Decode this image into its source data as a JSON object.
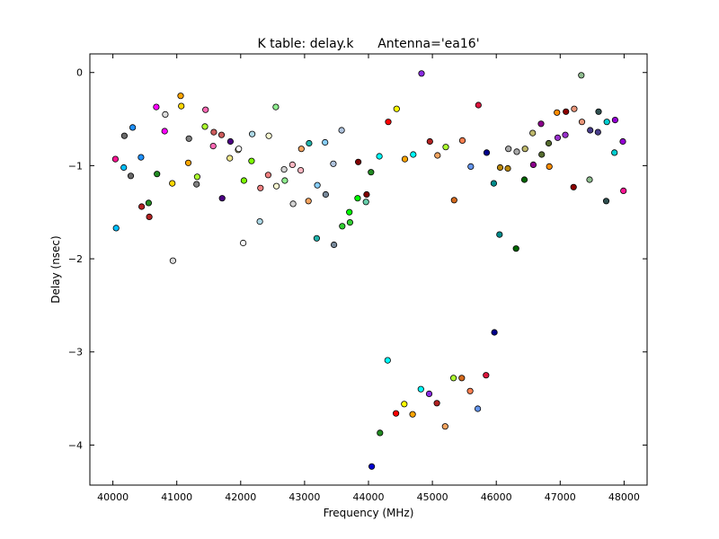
{
  "chart_data": {
    "type": "scatter",
    "title": "K table: delay.k      Antenna='ea16'",
    "xlabel": "Frequency (MHz)",
    "ylabel": "Delay (nsec)",
    "xlim": [
      39640,
      48360
    ],
    "ylim": [
      -4.43,
      0.2
    ],
    "xticks": [
      40000,
      41000,
      42000,
      43000,
      44000,
      45000,
      46000,
      47000,
      48000
    ],
    "yticks": [
      0,
      -1,
      -2,
      -3,
      -4
    ],
    "ytick_labels": [
      "0",
      "−1",
      "−2",
      "−3",
      "−4"
    ],
    "grid": false,
    "points": [
      {
        "x": 40040,
        "y": -0.93,
        "color": "#ff1493"
      },
      {
        "x": 40050,
        "y": -1.67,
        "color": "#00bfff"
      },
      {
        "x": 40170,
        "y": -1.02,
        "color": "#00bfff"
      },
      {
        "x": 40180,
        "y": -0.68,
        "color": "#696969"
      },
      {
        "x": 40280,
        "y": -1.11,
        "color": "#696969"
      },
      {
        "x": 40310,
        "y": -0.59,
        "color": "#1e90ff"
      },
      {
        "x": 40440,
        "y": -0.91,
        "color": "#1e90ff"
      },
      {
        "x": 40450,
        "y": -1.44,
        "color": "#b22222"
      },
      {
        "x": 40560,
        "y": -1.4,
        "color": "#228b22"
      },
      {
        "x": 40570,
        "y": -1.55,
        "color": "#b22222"
      },
      {
        "x": 40680,
        "y": -0.37,
        "color": "#ff00ff"
      },
      {
        "x": 40690,
        "y": -1.09,
        "color": "#228b22"
      },
      {
        "x": 40810,
        "y": -0.63,
        "color": "#ff00ff"
      },
      {
        "x": 40820,
        "y": -0.45,
        "color": "#dcdcdc"
      },
      {
        "x": 40930,
        "y": -1.19,
        "color": "#ffd700"
      },
      {
        "x": 40940,
        "y": -2.02,
        "color": "#dcdcdc"
      },
      {
        "x": 41060,
        "y": -0.25,
        "color": "#ffa500"
      },
      {
        "x": 41070,
        "y": -0.36,
        "color": "#ffd700"
      },
      {
        "x": 41180,
        "y": -0.97,
        "color": "#ffa500"
      },
      {
        "x": 41190,
        "y": -0.71,
        "color": "#808080"
      },
      {
        "x": 41310,
        "y": -1.2,
        "color": "#808080"
      },
      {
        "x": 41320,
        "y": -1.12,
        "color": "#adff2f"
      },
      {
        "x": 41440,
        "y": -0.58,
        "color": "#adff2f"
      },
      {
        "x": 41450,
        "y": -0.4,
        "color": "#ff69b4"
      },
      {
        "x": 41570,
        "y": -0.79,
        "color": "#ff69b4"
      },
      {
        "x": 41580,
        "y": -0.64,
        "color": "#cd5c5c"
      },
      {
        "x": 41700,
        "y": -0.67,
        "color": "#cd5c5c"
      },
      {
        "x": 41710,
        "y": -1.35,
        "color": "#4b0082"
      },
      {
        "x": 41830,
        "y": -0.92,
        "color": "#f0e68c"
      },
      {
        "x": 41840,
        "y": -0.74,
        "color": "#4b0082"
      },
      {
        "x": 41960,
        "y": -0.83,
        "color": "#f0e68c"
      },
      {
        "x": 41970,
        "y": -0.82,
        "color": "#ffffff"
      },
      {
        "x": 42040,
        "y": -1.83,
        "color": "#ffffff"
      },
      {
        "x": 42050,
        "y": -1.16,
        "color": "#7cfc00"
      },
      {
        "x": 42170,
        "y": -0.95,
        "color": "#7cfc00"
      },
      {
        "x": 42180,
        "y": -0.66,
        "color": "#add8e6"
      },
      {
        "x": 42300,
        "y": -1.6,
        "color": "#add8e6"
      },
      {
        "x": 42310,
        "y": -1.24,
        "color": "#f08080"
      },
      {
        "x": 42430,
        "y": -1.1,
        "color": "#f08080"
      },
      {
        "x": 42440,
        "y": -0.68,
        "color": "#fafad2"
      },
      {
        "x": 42550,
        "y": -0.37,
        "color": "#90ee90"
      },
      {
        "x": 42560,
        "y": -1.22,
        "color": "#fafad2"
      },
      {
        "x": 42680,
        "y": -1.04,
        "color": "#d3d3d3"
      },
      {
        "x": 42690,
        "y": -1.16,
        "color": "#90ee90"
      },
      {
        "x": 42810,
        "y": -0.99,
        "color": "#ffb6c1"
      },
      {
        "x": 42820,
        "y": -1.41,
        "color": "#d3d3d3"
      },
      {
        "x": 42940,
        "y": -1.05,
        "color": "#ffb6c1"
      },
      {
        "x": 42950,
        "y": -0.82,
        "color": "#f4a460"
      },
      {
        "x": 43060,
        "y": -1.38,
        "color": "#f4a460"
      },
      {
        "x": 43070,
        "y": -0.76,
        "color": "#20b2aa"
      },
      {
        "x": 43190,
        "y": -1.78,
        "color": "#20b2aa"
      },
      {
        "x": 43200,
        "y": -1.21,
        "color": "#87cefa"
      },
      {
        "x": 43320,
        "y": -0.75,
        "color": "#87cefa"
      },
      {
        "x": 43330,
        "y": -1.31,
        "color": "#778899"
      },
      {
        "x": 43450,
        "y": -0.98,
        "color": "#b0c4de"
      },
      {
        "x": 43460,
        "y": -1.85,
        "color": "#778899"
      },
      {
        "x": 43580,
        "y": -0.62,
        "color": "#b0c4de"
      },
      {
        "x": 43590,
        "y": -1.65,
        "color": "#32cd32"
      },
      {
        "x": 43700,
        "y": -1.5,
        "color": "#00ff00"
      },
      {
        "x": 43710,
        "y": -1.61,
        "color": "#32cd32"
      },
      {
        "x": 43830,
        "y": -1.35,
        "color": "#00ff00"
      },
      {
        "x": 43840,
        "y": -0.96,
        "color": "#800000"
      },
      {
        "x": 43960,
        "y": -1.39,
        "color": "#66cdaa"
      },
      {
        "x": 43970,
        "y": -1.31,
        "color": "#800000"
      },
      {
        "x": 44040,
        "y": -1.07,
        "color": "#228b22"
      },
      {
        "x": 44050,
        "y": -4.23,
        "color": "#0000cd"
      },
      {
        "x": 44170,
        "y": -0.9,
        "color": "#00ffff"
      },
      {
        "x": 44180,
        "y": -3.87,
        "color": "#228b22"
      },
      {
        "x": 44300,
        "y": -3.09,
        "color": "#00ffff"
      },
      {
        "x": 44310,
        "y": -0.53,
        "color": "#ff0000"
      },
      {
        "x": 44430,
        "y": -3.66,
        "color": "#ff0000"
      },
      {
        "x": 44440,
        "y": -0.39,
        "color": "#ffff00"
      },
      {
        "x": 44560,
        "y": -3.56,
        "color": "#ffff00"
      },
      {
        "x": 44570,
        "y": -0.93,
        "color": "#ffa500"
      },
      {
        "x": 44690,
        "y": -3.67,
        "color": "#ffa500"
      },
      {
        "x": 44700,
        "y": -0.88,
        "color": "#00ffff"
      },
      {
        "x": 44820,
        "y": -3.4,
        "color": "#00ffff"
      },
      {
        "x": 44830,
        "y": -0.01,
        "color": "#8a2be2"
      },
      {
        "x": 44950,
        "y": -3.45,
        "color": "#8a2be2"
      },
      {
        "x": 44960,
        "y": -0.74,
        "color": "#b22222"
      },
      {
        "x": 45070,
        "y": -3.55,
        "color": "#b22222"
      },
      {
        "x": 45080,
        "y": -0.89,
        "color": "#f4a460"
      },
      {
        "x": 45200,
        "y": -3.8,
        "color": "#f4a460"
      },
      {
        "x": 45210,
        "y": -0.8,
        "color": "#adff2f"
      },
      {
        "x": 45330,
        "y": -3.28,
        "color": "#adff2f"
      },
      {
        "x": 45340,
        "y": -1.37,
        "color": "#d2691e"
      },
      {
        "x": 45460,
        "y": -3.28,
        "color": "#d2691e"
      },
      {
        "x": 45470,
        "y": -0.73,
        "color": "#ff7f50"
      },
      {
        "x": 45590,
        "y": -3.42,
        "color": "#ff7f50"
      },
      {
        "x": 45600,
        "y": -1.01,
        "color": "#6495ed"
      },
      {
        "x": 45710,
        "y": -3.61,
        "color": "#6495ed"
      },
      {
        "x": 45720,
        "y": -0.35,
        "color": "#dc143c"
      },
      {
        "x": 45840,
        "y": -3.25,
        "color": "#dc143c"
      },
      {
        "x": 45850,
        "y": -0.86,
        "color": "#00008b"
      },
      {
        "x": 45970,
        "y": -2.79,
        "color": "#00008b"
      },
      {
        "x": 45960,
        "y": -1.19,
        "color": "#008b8b"
      },
      {
        "x": 46050,
        "y": -1.74,
        "color": "#008b8b"
      },
      {
        "x": 46060,
        "y": -1.02,
        "color": "#b8860b"
      },
      {
        "x": 46180,
        "y": -1.03,
        "color": "#b8860b"
      },
      {
        "x": 46190,
        "y": -0.82,
        "color": "#a9a9a9"
      },
      {
        "x": 46310,
        "y": -1.89,
        "color": "#006400"
      },
      {
        "x": 46320,
        "y": -0.85,
        "color": "#a9a9a9"
      },
      {
        "x": 46440,
        "y": -1.15,
        "color": "#006400"
      },
      {
        "x": 46450,
        "y": -0.82,
        "color": "#bdb76b"
      },
      {
        "x": 46570,
        "y": -0.65,
        "color": "#bdb76b"
      },
      {
        "x": 46580,
        "y": -0.99,
        "color": "#8b008b"
      },
      {
        "x": 46700,
        "y": -0.55,
        "color": "#8b008b"
      },
      {
        "x": 46710,
        "y": -0.88,
        "color": "#556b2f"
      },
      {
        "x": 46820,
        "y": -0.76,
        "color": "#556b2f"
      },
      {
        "x": 46830,
        "y": -1.01,
        "color": "#ff8c00"
      },
      {
        "x": 46950,
        "y": -0.43,
        "color": "#ff8c00"
      },
      {
        "x": 46960,
        "y": -0.7,
        "color": "#9932cc"
      },
      {
        "x": 47080,
        "y": -0.67,
        "color": "#9932cc"
      },
      {
        "x": 47090,
        "y": -0.42,
        "color": "#8b0000"
      },
      {
        "x": 47210,
        "y": -1.23,
        "color": "#8b0000"
      },
      {
        "x": 47220,
        "y": -0.39,
        "color": "#e9967a"
      },
      {
        "x": 47340,
        "y": -0.53,
        "color": "#e9967a"
      },
      {
        "x": 47330,
        "y": -0.03,
        "color": "#8fbc8f"
      },
      {
        "x": 47460,
        "y": -1.15,
        "color": "#8fbc8f"
      },
      {
        "x": 47470,
        "y": -0.62,
        "color": "#483d8b"
      },
      {
        "x": 47590,
        "y": -0.64,
        "color": "#483d8b"
      },
      {
        "x": 47600,
        "y": -0.42,
        "color": "#2f4f4f"
      },
      {
        "x": 47720,
        "y": -1.38,
        "color": "#2f4f4f"
      },
      {
        "x": 47730,
        "y": -0.53,
        "color": "#00ced1"
      },
      {
        "x": 47850,
        "y": -0.86,
        "color": "#00ced1"
      },
      {
        "x": 47860,
        "y": -0.51,
        "color": "#9400d3"
      },
      {
        "x": 47980,
        "y": -0.74,
        "color": "#9400d3"
      },
      {
        "x": 47990,
        "y": -1.27,
        "color": "#ff1493"
      }
    ]
  }
}
